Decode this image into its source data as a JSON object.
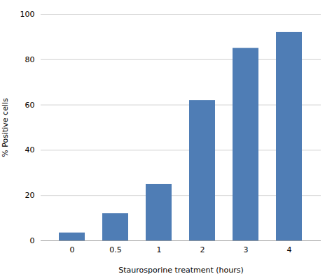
{
  "chart_data": {
    "type": "bar",
    "categories": [
      "0",
      "0.5",
      "1",
      "2",
      "3",
      "4"
    ],
    "values": [
      3.5,
      12,
      25,
      62,
      85,
      92
    ],
    "color": "#4f7db5",
    "xlabel": "Staurosporine treatment (hours)",
    "ylabel": "% Positive cells",
    "ylim": [
      0,
      100
    ],
    "yticks": [
      0,
      20,
      40,
      60,
      80,
      100
    ],
    "grid": true
  }
}
